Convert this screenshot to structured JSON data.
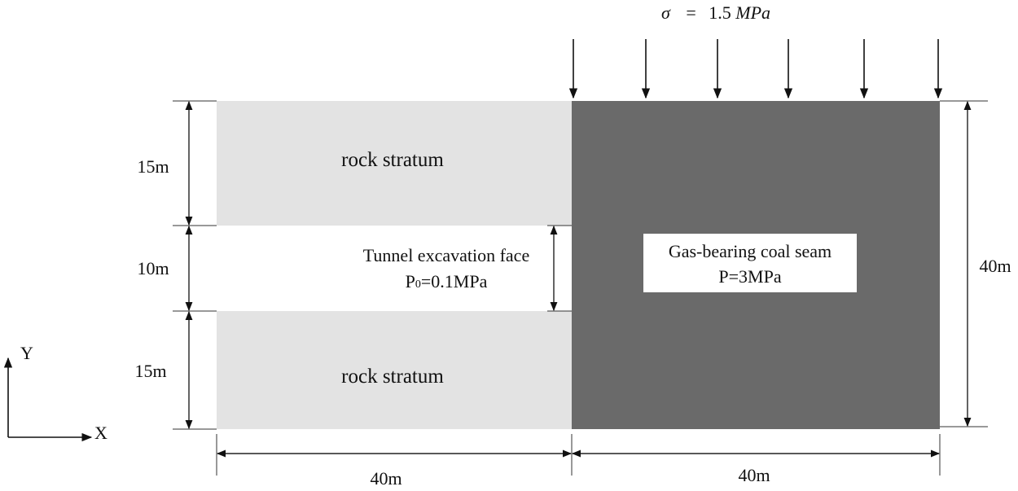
{
  "load": {
    "symbol": "σ",
    "equals": "=",
    "value": "1.5",
    "unit": "MPa"
  },
  "regions": {
    "rock_top": {
      "label": "rock stratum"
    },
    "rock_bottom": {
      "label": "rock stratum"
    },
    "tunnel": {
      "line1": "Tunnel excavation face",
      "line2_prefix": "P",
      "line2_sub": "0",
      "line2_suffix": "=0.1MPa"
    },
    "coal": {
      "line1": "Gas-bearing coal seam",
      "line2": "P=3MPa"
    }
  },
  "dimensions": {
    "top_height": "15m",
    "middle_height": "10m",
    "bottom_height": "15m",
    "right_height": "40m",
    "left_width": "40m",
    "right_width": "40m"
  },
  "axes": {
    "y_label": "Y",
    "x_label": "X"
  },
  "colors": {
    "rock": "#e3e3e3",
    "coal": "#6a6a6a",
    "label_box": "#ffffff",
    "line": "#111111"
  }
}
